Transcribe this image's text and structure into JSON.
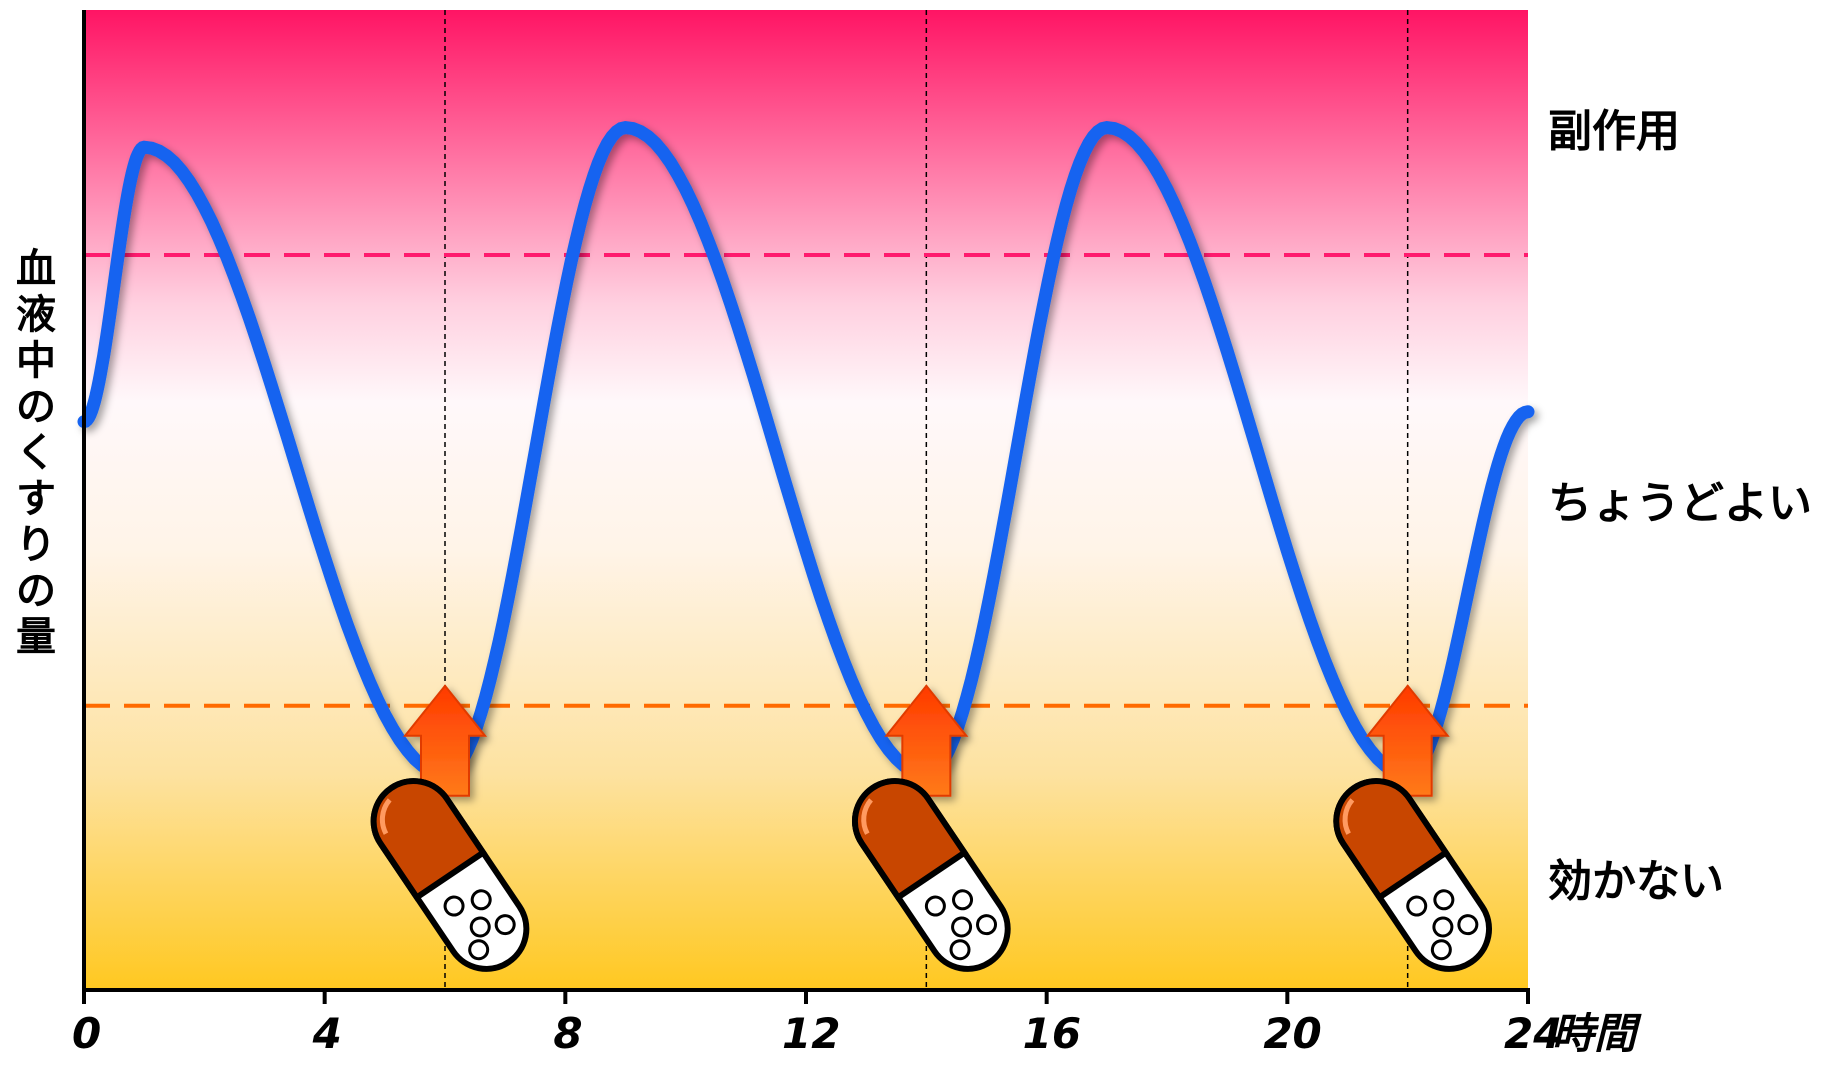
{
  "y_axis_label": "血液中のくすりの量",
  "zones": [
    {
      "label": "副作用",
      "level": "high"
    },
    {
      "label": "ちょうどよい",
      "level": "middle"
    },
    {
      "label": "効かない",
      "level": "low"
    }
  ],
  "chart_data": {
    "type": "line",
    "x": [
      0,
      1,
      6,
      9,
      14,
      17,
      22,
      24
    ],
    "y": [
      58,
      86,
      22,
      88,
      22,
      88,
      22,
      59
    ],
    "xlim": [
      0,
      24
    ],
    "ylim": [
      0,
      100
    ],
    "xticks": [
      "0",
      "4",
      "8",
      "12",
      "16",
      "20",
      "24"
    ],
    "x_unit": "時間",
    "thresholds": {
      "side_effect": 75,
      "ineffective": 29
    },
    "doses_at": [
      6,
      14,
      22
    ],
    "colors": {
      "curve": "#1464f0",
      "side_effect_line": "#ff1a6e",
      "ineffective_line": "#ff6a00",
      "arrow": "#ff5a00",
      "capsule_top": "#c84600"
    }
  }
}
